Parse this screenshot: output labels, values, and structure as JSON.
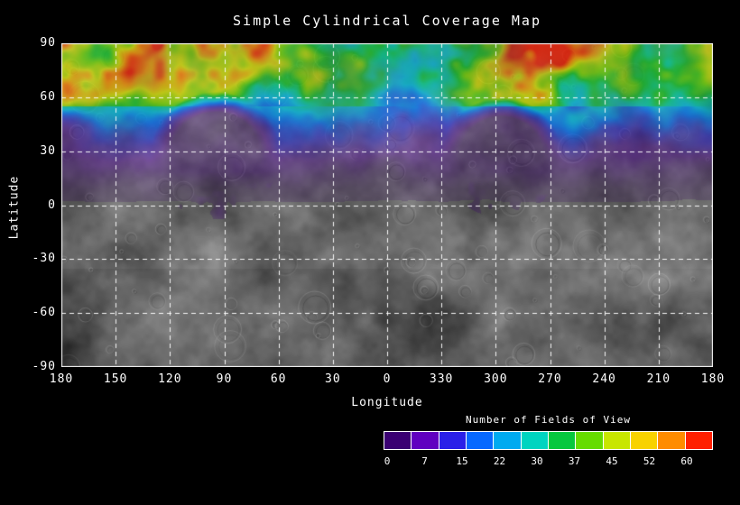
{
  "title": "Simple Cylindrical Coverage Map",
  "axes": {
    "x_label": "Longitude",
    "y_label": "Latitude",
    "x_ticks": [
      "180",
      "150",
      "120",
      "90",
      "60",
      "30",
      "0",
      "330",
      "300",
      "270",
      "240",
      "210",
      "180"
    ],
    "y_ticks": [
      "90",
      "60",
      "30",
      "0",
      "-30",
      "-60",
      "-90"
    ]
  },
  "colorbar": {
    "title": "Number of Fields of View",
    "tick_labels": [
      "0",
      "7",
      "15",
      "22",
      "30",
      "37",
      "45",
      "52",
      "60"
    ],
    "segment_colors": [
      "#3a0072",
      "#6000c0",
      "#2a20e8",
      "#0668ff",
      "#00aaf0",
      "#00d4c0",
      "#06c83e",
      "#66dc00",
      "#c8e600",
      "#f8d200",
      "#ff8c00",
      "#ff2000"
    ]
  },
  "chart_data": {
    "type": "heatmap",
    "title": "Simple Cylindrical Coverage Map",
    "xlabel": "Longitude",
    "ylabel": "Latitude",
    "x_ticks_deg": [
      180,
      150,
      120,
      90,
      60,
      30,
      0,
      330,
      300,
      270,
      240,
      210,
      180
    ],
    "y_ticks_deg": [
      90,
      60,
      30,
      0,
      -30,
      -60,
      -90
    ],
    "value_label": "Number of Fields of View",
    "value_range": [
      0,
      60
    ],
    "colorbar_tick_values": [
      0,
      7,
      15,
      22,
      30,
      37,
      45,
      52,
      60
    ],
    "basemap": "grayscale planetary surface mosaic with craters; coverage colors alpha-blended on top",
    "gradient": [
      [
        0.0,
        "#30005a"
      ],
      [
        0.1,
        "#5a00b4"
      ],
      [
        0.2,
        "#2828e6"
      ],
      [
        0.3,
        "#0072ff"
      ],
      [
        0.4,
        "#00c0e6"
      ],
      [
        0.5,
        "#00d292"
      ],
      [
        0.58,
        "#14c828"
      ],
      [
        0.68,
        "#78dc00"
      ],
      [
        0.78,
        "#dce600"
      ],
      [
        0.88,
        "#ff9600"
      ],
      [
        1.0,
        "#ff1e00"
      ]
    ],
    "lat_profile": [
      [
        90,
        42
      ],
      [
        74,
        36
      ],
      [
        63,
        28
      ],
      [
        52,
        20
      ],
      [
        42,
        13
      ],
      [
        32,
        8
      ],
      [
        24,
        4.5
      ],
      [
        16,
        2.2
      ],
      [
        10,
        0.9
      ],
      [
        5,
        0.3
      ],
      [
        0,
        0
      ],
      [
        -90,
        0
      ]
    ],
    "low_coverage_regions": [
      {
        "center_lon": 95,
        "center_lat": 27,
        "radius_deg": 33,
        "fov_range": [
          0,
          6
        ]
      },
      {
        "center_lon": 297,
        "center_lat": 26,
        "radius_deg": 31,
        "fov_range": [
          0,
          6
        ]
      }
    ],
    "estimated_fov_grid": {
      "lat_bin_edges_deg": [
        90,
        75,
        60,
        45,
        30,
        15,
        0,
        -15,
        -30,
        -45,
        -60,
        -75,
        -90
      ],
      "lon_bin_edges_deg": [
        180,
        150,
        120,
        90,
        60,
        30,
        0,
        330,
        300,
        270,
        240,
        210,
        180
      ],
      "values": [
        [
          35,
          40,
          45,
          38,
          30,
          42,
          36,
          45,
          40,
          38,
          42,
          36
        ],
        [
          30,
          38,
          44,
          30,
          25,
          35,
          30,
          40,
          45,
          38,
          30,
          28
        ],
        [
          22,
          18,
          6,
          5,
          18,
          24,
          22,
          8,
          5,
          15,
          20,
          22
        ],
        [
          12,
          8,
          3,
          2,
          10,
          15,
          12,
          4,
          2,
          8,
          12,
          14
        ],
        [
          5,
          3,
          2,
          2,
          4,
          7,
          5,
          2,
          2,
          3,
          5,
          6
        ],
        [
          1,
          1,
          2,
          2,
          1,
          2,
          1,
          2,
          2,
          1,
          1,
          1
        ],
        [
          0,
          0,
          1,
          1,
          0,
          0,
          0,
          1,
          1,
          0,
          0,
          0
        ],
        [
          0,
          0,
          1,
          0,
          0,
          0,
          0,
          0,
          1,
          0,
          0,
          0
        ],
        [
          0,
          0,
          0,
          0,
          0,
          0,
          0,
          0,
          0,
          0,
          0,
          0
        ],
        [
          0,
          0,
          0,
          0,
          0,
          0,
          0,
          0,
          0,
          0,
          0,
          0
        ],
        [
          0,
          0,
          0,
          0,
          0,
          0,
          0,
          0,
          0,
          0,
          0,
          0
        ],
        [
          0,
          0,
          0,
          0,
          0,
          0,
          0,
          0,
          0,
          0,
          0,
          0
        ]
      ]
    }
  }
}
